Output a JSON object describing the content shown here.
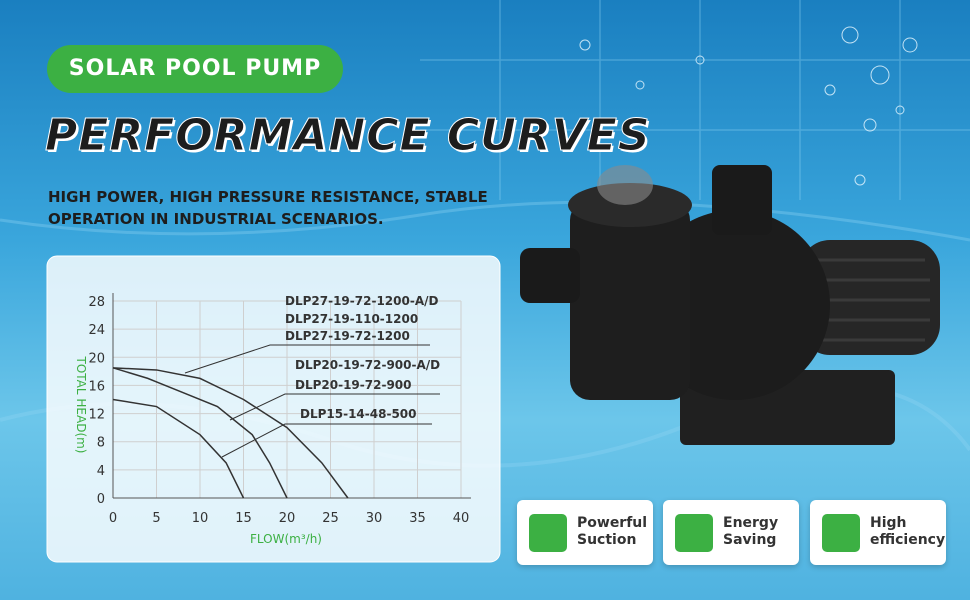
{
  "header": {
    "badge": "SOLAR POOL PUMP",
    "title": "PERFORMANCE CURVES",
    "subtitle": "HIGH POWER, HIGH PRESSURE RESISTANCE, STABLE OPERATION IN INDUSTRIAL SCENARIOS."
  },
  "chart_data": {
    "type": "line",
    "xlabel": "FLOW(m³/h)",
    "ylabel": "TOTAL HEAD(m)",
    "xlim": [
      0,
      40
    ],
    "xticks": [
      0,
      5,
      10,
      15,
      20,
      25,
      30,
      35,
      40
    ],
    "ylim": [
      0,
      28
    ],
    "yticks": [
      0,
      4,
      8,
      12,
      16,
      20,
      24,
      28
    ],
    "grid": true,
    "series": [
      {
        "color": "#333333",
        "x": [
          0,
          5,
          10,
          15,
          20,
          24,
          27
        ],
        "values": [
          18.5,
          18.2,
          17,
          14,
          10,
          5,
          0
        ]
      },
      {
        "color": "#333333",
        "x": [
          0,
          4,
          8,
          12,
          16,
          18,
          20
        ],
        "values": [
          18.5,
          17,
          15,
          13,
          9,
          5,
          0
        ]
      },
      {
        "color": "#333333",
        "x": [
          0,
          5,
          10,
          13,
          15
        ],
        "values": [
          14,
          13,
          9,
          5,
          0
        ]
      }
    ],
    "annotations": [
      "DLP27-19-72-1200-A/D",
      "DLP27-19-110-1200",
      "DLP27-19-72-1200",
      "DLP20-19-72-900-A/D",
      "DLP20-19-72-900",
      "DLP15-14-48-500"
    ]
  },
  "features": [
    "Powerful Suction",
    "Energy Saving",
    "High efficiency"
  ]
}
